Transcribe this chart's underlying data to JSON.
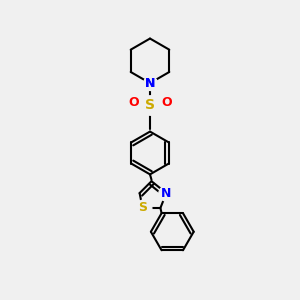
{
  "background_color": "#f0f0f0",
  "bond_color": "#000000",
  "line_width": 1.5,
  "atom_colors": {
    "N": "#0000ff",
    "S_sulfonyl": "#ccaa00",
    "O": "#ff0000",
    "S_thiazole": "#ccaa00",
    "C": "#000000"
  },
  "font_size": 9
}
